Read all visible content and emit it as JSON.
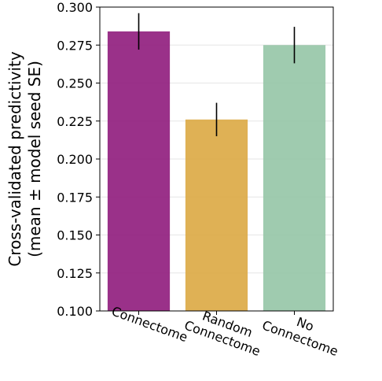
{
  "chart_data": {
    "type": "bar",
    "title": "",
    "xlabel": "",
    "ylabel": [
      "Cross-validated predictivity",
      "(mean ± model seed SE)"
    ],
    "ylim": [
      0.1,
      0.3
    ],
    "yticks": [
      "0.100",
      "0.125",
      "0.150",
      "0.175",
      "0.200",
      "0.225",
      "0.250",
      "0.275",
      "0.300"
    ],
    "ytick_values": [
      0.1,
      0.125,
      0.15,
      0.175,
      0.2,
      0.225,
      0.25,
      0.275,
      0.3
    ],
    "grid": true,
    "categories": [
      [
        "Connectome"
      ],
      [
        "Random",
        "Connectome"
      ],
      [
        "No",
        "Connectome"
      ]
    ],
    "values": [
      0.284,
      0.226,
      0.275
    ],
    "errors": [
      0.012,
      0.011,
      0.012
    ],
    "colors": [
      "#8f1b7c",
      "#dba842",
      "#95c5a6"
    ]
  }
}
